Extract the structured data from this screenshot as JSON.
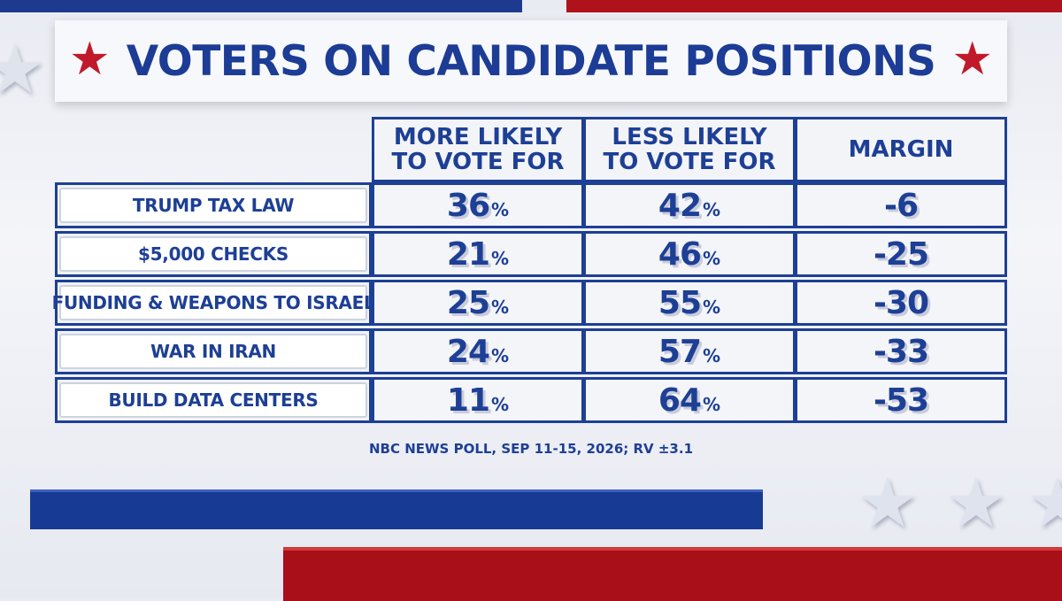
{
  "title": "VOTERS ON CANDIDATE POSITIONS",
  "icons": {
    "title_star": "star-icon",
    "decor_star": "star-icon"
  },
  "colors": {
    "blue": "#1d3f95",
    "red": "#c01a2a"
  },
  "source": "NBC NEWS POLL, SEP 11-15, 2026; RV ±3.1",
  "chart_data": {
    "type": "table",
    "columns": [
      "",
      "MORE LIKELY TO VOTE FOR",
      "LESS LIKELY TO VOTE FOR",
      "MARGIN"
    ],
    "rows": [
      {
        "label": "TRUMP TAX LAW",
        "more": "36",
        "less": "42",
        "margin": "-6"
      },
      {
        "label": "$5,000 CHECKS",
        "more": "21",
        "less": "46",
        "margin": "-25"
      },
      {
        "label": "FUNDING & WEAPONS TO ISRAEL",
        "more": "25",
        "less": "55",
        "margin": "-30"
      },
      {
        "label": "WAR IN IRAN",
        "more": "24",
        "less": "57",
        "margin": "-33"
      },
      {
        "label": "BUILD DATA CENTERS",
        "more": "11",
        "less": "64",
        "margin": "-53"
      }
    ],
    "unit": "%"
  }
}
